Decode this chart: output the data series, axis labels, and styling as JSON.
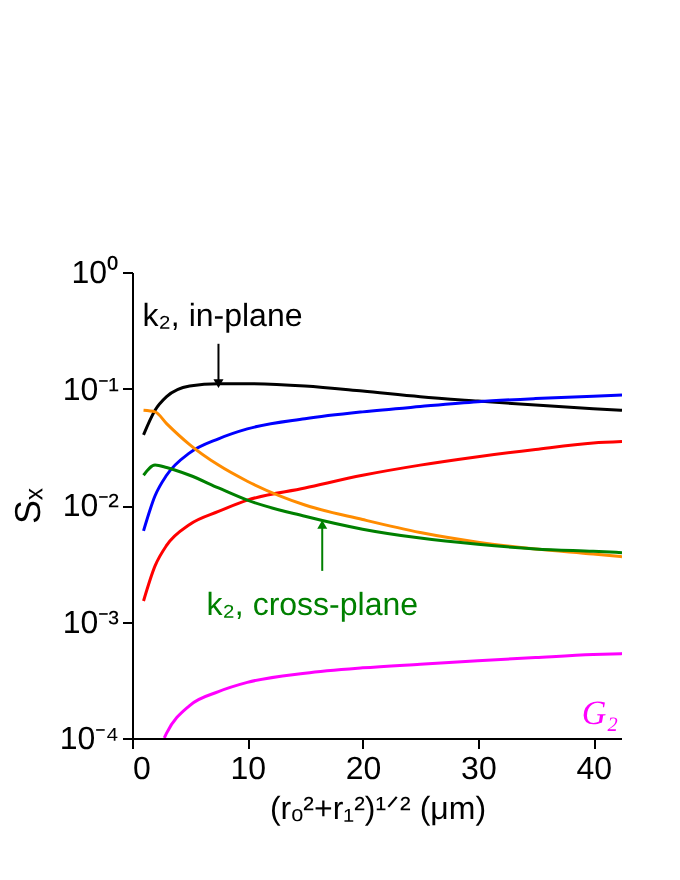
{
  "chart_data": {
    "type": "line",
    "xlabel": "(rₒ²+r₁²)¹ᐟ² (μm)",
    "ylabel": "Sₓ",
    "x": [
      1,
      2,
      3,
      5,
      7.5,
      10,
      15,
      20,
      25,
      30,
      35,
      40,
      42.5
    ],
    "series": [
      {
        "color": "#000000",
        "values": [
          0.04,
          0.065,
          0.085,
          0.105,
          0.11,
          0.11,
          0.105,
          0.095,
          0.085,
          0.078,
          0.072,
          0.067,
          0.065
        ]
      },
      {
        "color": "#0000ff",
        "values": [
          0.006,
          0.012,
          0.018,
          0.028,
          0.037,
          0.045,
          0.055,
          0.063,
          0.07,
          0.077,
          0.082,
          0.086,
          0.088
        ]
      },
      {
        "color": "#ff0000",
        "values": [
          0.0015,
          0.003,
          0.0045,
          0.0068,
          0.0088,
          0.011,
          0.014,
          0.018,
          0.022,
          0.026,
          0.03,
          0.034,
          0.035
        ]
      },
      {
        "color": "#ff8c00",
        "values": [
          0.065,
          0.063,
          0.05,
          0.033,
          0.022,
          0.016,
          0.01,
          0.0075,
          0.0058,
          0.0048,
          0.0042,
          0.0038,
          0.0036
        ]
      },
      {
        "color": "#008000",
        "values": [
          0.018,
          0.022,
          0.021,
          0.018,
          0.014,
          0.011,
          0.008,
          0.0062,
          0.0052,
          0.0046,
          0.0042,
          0.004,
          0.0039
        ]
      },
      {
        "name": "G₂",
        "color": "#ff00ff",
        "x": [
          2.8,
          3,
          5,
          7.5,
          10,
          15,
          20,
          25,
          30,
          35,
          40,
          42.5
        ],
        "values": [
          0.0001,
          0.00011,
          0.00019,
          0.00025,
          0.0003,
          0.00036,
          0.0004,
          0.00043,
          0.00046,
          0.00049,
          0.00052,
          0.00053
        ]
      }
    ],
    "annotations": [
      {
        "text": "k₂, in-plane",
        "x": 7.5,
        "y": 0.11
      },
      {
        "text": "k₂, cross-plane",
        "x": 16.5,
        "y": 0.0068
      }
    ],
    "xlim": [
      0,
      42.5
    ],
    "xticks": [
      0,
      10,
      20,
      30,
      40
    ],
    "ylim": [
      0.0001,
      1
    ],
    "yticks": [
      {
        "value": 0.0001,
        "label": "10⁻⁴"
      },
      {
        "value": 0.001,
        "label": "10⁻³"
      },
      {
        "value": 0.01,
        "label": "10⁻²"
      },
      {
        "value": 0.1,
        "label": "10⁻¹"
      },
      {
        "value": 1,
        "label": "10⁰"
      }
    ],
    "log": "y",
    "grid": false,
    "legend": false,
    "marker": "none",
    "line_style": "solid"
  }
}
